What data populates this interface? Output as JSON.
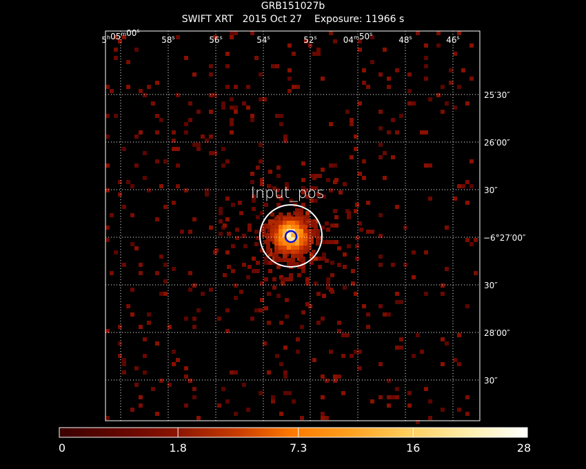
{
  "header": {
    "object": "GRB151027b",
    "instrument": "SWIFT XRT",
    "date": "2015 Oct 27",
    "exposure": "Exposure: 11966 s"
  },
  "ra_axis": {
    "labels": [
      {
        "h": "5",
        "m": "05",
        "s": "00"
      },
      {
        "s": "58"
      },
      {
        "s": "56"
      },
      {
        "s": "54"
      },
      {
        "s": "52"
      },
      {
        "m": "04",
        "s": "50"
      },
      {
        "s": "48"
      },
      {
        "s": "46"
      }
    ]
  },
  "dec_axis": {
    "labels": [
      "25′30″",
      "26′00″",
      "30″",
      "−6°27′00″",
      "30″",
      "28′00″",
      "30″"
    ]
  },
  "image": {
    "marker_label": "Input_pos",
    "background": "#000000"
  },
  "colorbar": {
    "tick_labels": [
      "0",
      "1.8",
      "7.3",
      "16",
      "28"
    ],
    "tick_values": [
      0,
      1.8,
      7.3,
      16,
      28
    ],
    "scale": "sqrt",
    "min": 0,
    "max": 28,
    "colors": [
      "#3a0000",
      "#7a0a00",
      "#c83200",
      "#ff7a00",
      "#ffc040",
      "#fff0a0",
      "#ffffff"
    ]
  }
}
